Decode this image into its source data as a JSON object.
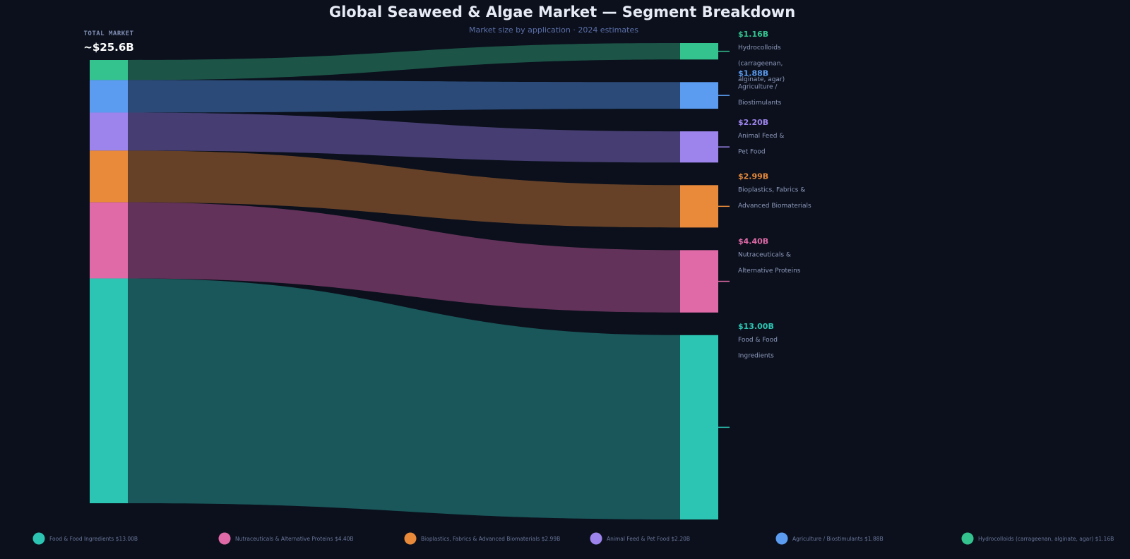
{
  "title": "Global Seaweed & Algae Market — Segment Breakdown",
  "subtitle": "Market size by application  ·  2024 estimates",
  "total": {
    "label": "TOTAL MARKET",
    "value": "~$25.6B"
  },
  "chart_data": {
    "type": "sankey",
    "title": "Global Seaweed & Algae Market — Segment Breakdown",
    "subtitle": "Market size by application  ·  2024 estimates",
    "unit": "USD billions",
    "source": {
      "label": "TOTAL MARKET",
      "value_text": "~$25.6B"
    },
    "segments": [
      {
        "name": "Hydrocolloids (carrageenan, alginate, agar)",
        "label_lines": [
          "Hydrocolloids",
          "(carrageenan,",
          "alginate, agar)"
        ],
        "value": 1.16,
        "value_text": "$1.16B",
        "legend_text": "Hydrocolloids (carrageenan, alginate, agar)  $1.16B",
        "color": "#34c38f",
        "flow_color": "#1e5a4a"
      },
      {
        "name": "Agriculture / Biostimulants",
        "label_lines": [
          "Agriculture /",
          "Biostimulants"
        ],
        "value": 1.88,
        "value_text": "$1.88B",
        "legend_text": "Agriculture / Biostimulants  $1.88B",
        "color": "#5b9cf0",
        "flow_color": "#2d4e7c"
      },
      {
        "name": "Animal Feed & Pet Food",
        "label_lines": [
          "Animal Feed &",
          "Pet Food"
        ],
        "value": 2.2,
        "value_text": "$2.20B",
        "legend_text": "Animal Feed & Pet Food  $2.20B",
        "color": "#9d84ec",
        "flow_color": "#4a4177"
      },
      {
        "name": "Bioplastics, Fabrics & Advanced Biomaterials",
        "label_lines": [
          "Bioplastics, Fabrics &",
          "Advanced Biomaterials"
        ],
        "value": 2.99,
        "value_text": "$2.99B",
        "legend_text": "Bioplastics, Fabrics & Advanced Biomaterials  $2.99B",
        "color": "#e88a3a",
        "flow_color": "#6b4429"
      },
      {
        "name": "Nutraceuticals & Alternative Proteins",
        "label_lines": [
          "Nutraceuticals &",
          "Alternative Proteins"
        ],
        "value": 4.4,
        "value_text": "$4.40B",
        "legend_text": "Nutraceuticals & Alternative Proteins  $4.40B",
        "color": "#e06aa8",
        "flow_color": "#68355e"
      },
      {
        "name": "Food & Food Ingredients",
        "label_lines": [
          "Food & Food",
          "Ingredients"
        ],
        "value": 13.0,
        "value_text": "$13.00B",
        "legend_text": "Food & Food Ingredients  $13.00B",
        "color": "#2cc4b2",
        "flow_color": "#1a5c5e"
      }
    ],
    "legend_order": [
      "Food & Food Ingredients",
      "Nutraceuticals & Alternative Proteins",
      "Bioplastics, Fabrics & Advanced Biomaterials",
      "Animal Feed & Pet Food",
      "Agriculture / Biostimulants",
      "Hydrocolloids (carrageenan, alginate, agar)"
    ]
  }
}
